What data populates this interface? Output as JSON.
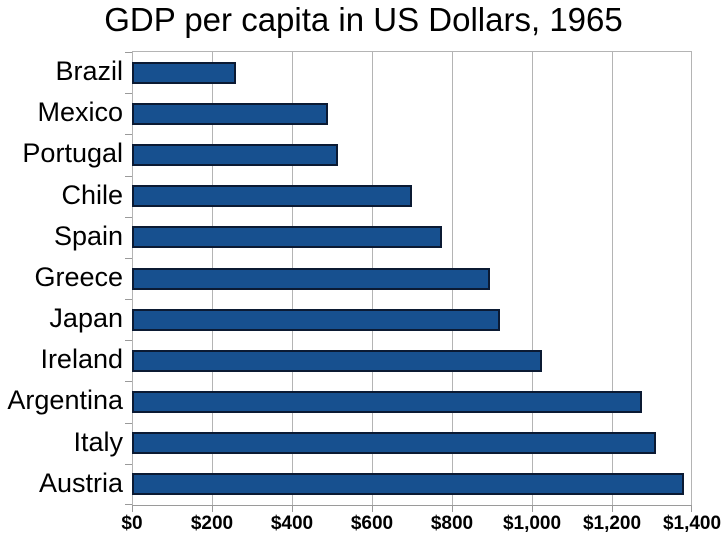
{
  "chart_data": {
    "type": "bar",
    "orientation": "horizontal",
    "title": "GDP per capita in US Dollars, 1965",
    "categories": [
      "Brazil",
      "Mexico",
      "Portugal",
      "Chile",
      "Spain",
      "Greece",
      "Japan",
      "Ireland",
      "Argentina",
      "Italy",
      "Austria"
    ],
    "values": [
      260,
      490,
      515,
      700,
      775,
      895,
      920,
      1025,
      1275,
      1310,
      1380
    ],
    "xlabel": "",
    "ylabel": "",
    "xlim": [
      0,
      1400
    ],
    "xtick_interval": 200,
    "xtick_labels": [
      "$0",
      "$200",
      "$400",
      "$600",
      "$800",
      "$1,000",
      "$1,200",
      "$1,400"
    ],
    "grid": true,
    "legend": "none"
  },
  "colors": {
    "bar_fill": "#17508f",
    "bar_border": "#0b1a33",
    "gridline": "#b4b4b4",
    "axis": "#9a9a9a",
    "text": "#000000",
    "background": "#ffffff"
  }
}
